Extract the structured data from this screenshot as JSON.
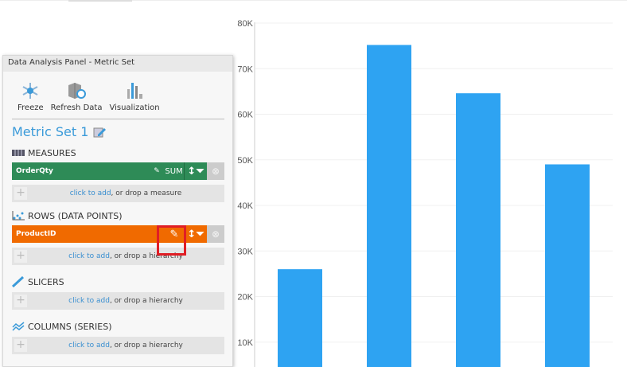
{
  "panel": {
    "title": "Data Analysis Panel - Metric Set",
    "tools": [
      {
        "label": "Freeze",
        "icon": "freeze-icon"
      },
      {
        "label": "Refresh Data",
        "icon": "refresh-data-icon"
      },
      {
        "label": "Visualization",
        "icon": "visualization-icon"
      }
    ],
    "metric_set_title": "Metric Set 1",
    "measures": {
      "heading": "MEASURES",
      "field": "OrderQty",
      "aggregation": "SUM",
      "color": "#2e8b57",
      "add_link": "click to add",
      "add_rest": ", or drop a measure"
    },
    "rows": {
      "heading": "ROWS (DATA POINTS)",
      "field": "ProductID",
      "color": "#f06a00",
      "add_link": "click to add",
      "add_rest": ", or drop a hierarchy"
    },
    "slicers": {
      "heading": "SLICERS",
      "add_link": "click to add",
      "add_rest": ", or drop a hierarchy"
    },
    "columns": {
      "heading": "COLUMNS (SERIES)",
      "add_link": "click to add",
      "add_rest": ", or drop a hierarchy"
    }
  },
  "chart_data": {
    "type": "bar",
    "values": [
      26000,
      75200,
      64600,
      49000
    ],
    "yticks": [
      "10K",
      "20K",
      "30K",
      "40K",
      "50K",
      "60K",
      "70K",
      "80K"
    ],
    "ylim": [
      0,
      80000
    ],
    "bar_color": "#2ea3f2",
    "grid": true
  }
}
